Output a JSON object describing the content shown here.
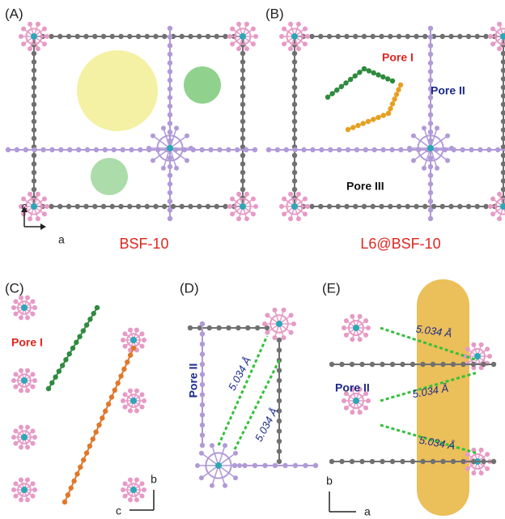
{
  "panels": [
    {
      "label": "(A)",
      "caption": "BSF-10",
      "axes": [
        "c",
        "a"
      ]
    },
    {
      "label": "(B)",
      "caption": "L6@BSF-10",
      "pores": [
        "Pore I",
        "Pore II",
        "Pore III"
      ]
    },
    {
      "label": "(C)",
      "pore": "Pore I",
      "axes": [
        "b",
        "c"
      ]
    },
    {
      "label": "(D)",
      "pore": "Pore II",
      "distances": [
        "5.034 Å",
        "5.034 Å"
      ]
    },
    {
      "label": "(E)",
      "pore": "Pore II",
      "distances": [
        "5.034 Å",
        "5.034 Å",
        "5.034 Å"
      ],
      "axes": [
        "b",
        "a"
      ]
    }
  ]
}
